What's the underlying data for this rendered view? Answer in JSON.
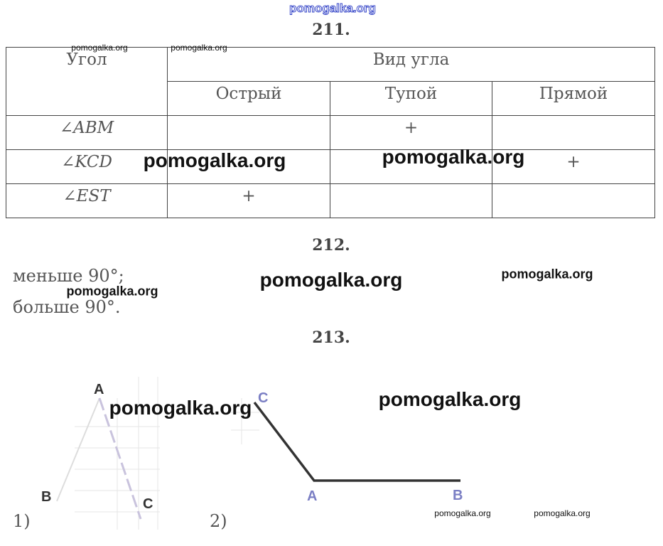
{
  "watermarks": [
    "pomogalka.org",
    "pomogalka.org",
    "pomogalka.org",
    "pomogalka.org",
    "pomogalka.org",
    "pomogalka.org",
    "pomogalka.org",
    "pomogalka.org",
    "pomogalka.org",
    "pomogalka.org",
    "pomogalka.org",
    "pomogalka.org"
  ],
  "task211": {
    "heading": "211.",
    "table": {
      "header": [
        "Угол",
        "Вид угла"
      ],
      "subheader": [
        "Острый",
        "Тупой",
        "Прямой"
      ],
      "rows": [
        [
          "∠ABM",
          null,
          "+",
          null
        ],
        [
          "∠KCD",
          null,
          null,
          "+"
        ],
        [
          "∠EST",
          "+",
          null,
          null
        ]
      ]
    }
  },
  "task212": {
    "heading": "212.",
    "lines": [
      "меньше 90°;",
      "больше 90°."
    ]
  },
  "task213": {
    "heading": "213.",
    "figure1": {
      "number": "1)",
      "labels": [
        "A",
        "B",
        "C"
      ]
    },
    "figure2": {
      "number": "2)",
      "labels": [
        "C",
        "A",
        "B"
      ]
    }
  }
}
